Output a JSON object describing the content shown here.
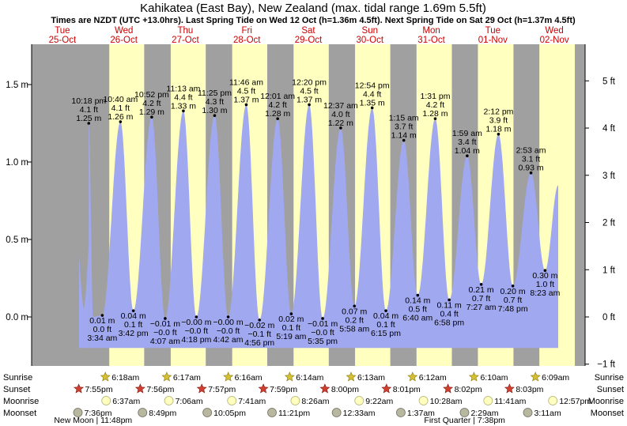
{
  "title": "Kahikatea (East Bay), New Zealand (max. tidal range 1.69m 5.5ft)",
  "subtitle": "Times are NZDT (UTC +13.0hrs). Last Spring Tide on Wed 12 Oct (h=1.36m 4.5ft). Next Spring Tide on Sat 29 Oct (h=1.37m 4.5ft)",
  "colors": {
    "day_text": "#cc0000",
    "water": "#a0a8f0",
    "night": "#a0a0a0",
    "day": "#ffffc0"
  },
  "chart_data": {
    "type": "area",
    "days": [
      {
        "dow": "Tue",
        "date": "25-Oct"
      },
      {
        "dow": "Wed",
        "date": "26-Oct"
      },
      {
        "dow": "Thu",
        "date": "27-Oct"
      },
      {
        "dow": "Fri",
        "date": "28-Oct"
      },
      {
        "dow": "Sat",
        "date": "29-Oct"
      },
      {
        "dow": "Sun",
        "date": "30-Oct"
      },
      {
        "dow": "Mon",
        "date": "31-Oct"
      },
      {
        "dow": "Tue",
        "date": "01-Nov"
      },
      {
        "dow": "Wed",
        "date": "02-Nov"
      }
    ],
    "y_left_ticks": [
      {
        "v": 1.5,
        "label": "1.5 m"
      },
      {
        "v": 1.0,
        "label": "1.0 m"
      },
      {
        "v": 0.5,
        "label": "0.5 m"
      },
      {
        "v": 0.0,
        "label": "0.0 m"
      }
    ],
    "y_right_ticks": [
      {
        "ft": 5,
        "label": "5 ft"
      },
      {
        "ft": 4,
        "label": "4 ft"
      },
      {
        "ft": 3,
        "label": "3 ft"
      },
      {
        "ft": 2,
        "label": "2 ft"
      },
      {
        "ft": 1,
        "label": "1 ft"
      },
      {
        "ft": 0,
        "label": "0 ft"
      },
      {
        "ft": -1,
        "label": "−1 ft"
      }
    ],
    "ylim_m": [
      -0.3,
      1.7
    ],
    "tides": [
      {
        "t": 24.0,
        "h": 0.0,
        "type": "low"
      },
      {
        "t": 22.3,
        "h": 1.25,
        "type": "high",
        "time": "10:18 pm",
        "ft": "4.1 ft",
        "m": "1.25 m"
      },
      {
        "t": 27.57,
        "h": 0.01,
        "type": "low",
        "time": "3:34 am",
        "ft": "0.0 ft",
        "m": "0.01 m"
      },
      {
        "t": 34.67,
        "h": 1.26,
        "type": "high",
        "time": "10:40 am",
        "ft": "4.1 ft",
        "m": "1.26 m"
      },
      {
        "t": 39.7,
        "h": 0.04,
        "type": "low",
        "time": "3:42 pm",
        "ft": "0.1 ft",
        "m": "0.04 m"
      },
      {
        "t": 46.87,
        "h": 1.29,
        "type": "high",
        "time": "10:52 pm",
        "ft": "4.2 ft",
        "m": "1.29 m"
      },
      {
        "t": 52.12,
        "h": -0.01,
        "type": "low",
        "time": "4:07 am",
        "ft": "−0.0 ft",
        "m": "−0.01 m"
      },
      {
        "t": 59.22,
        "h": 1.33,
        "type": "high",
        "time": "11:13 am",
        "ft": "4.4 ft",
        "m": "1.33 m"
      },
      {
        "t": 64.3,
        "h": -0.0,
        "type": "low",
        "time": "4:18 pm",
        "ft": "−0.0 ft",
        "m": "−0.00 m"
      },
      {
        "t": 71.42,
        "h": 1.3,
        "type": "high",
        "time": "11:25 pm",
        "ft": "4.3 ft",
        "m": "1.30 m"
      },
      {
        "t": 76.7,
        "h": -0.0,
        "type": "low",
        "time": "4:42 am",
        "ft": "−0.0 ft",
        "m": "−0.00 m"
      },
      {
        "t": 83.77,
        "h": 1.37,
        "type": "high",
        "time": "11:46 am",
        "ft": "4.5 ft",
        "m": "1.37 m"
      },
      {
        "t": 88.93,
        "h": -0.02,
        "type": "low",
        "time": "4:56 pm",
        "ft": "−0.1 ft",
        "m": "−0.02 m"
      },
      {
        "t": 96.02,
        "h": 1.28,
        "type": "high",
        "time": "12:01 am",
        "ft": "4.2 ft",
        "m": "1.28 m"
      },
      {
        "t": 101.32,
        "h": 0.02,
        "type": "low",
        "time": "5:19 am",
        "ft": "0.1 ft",
        "m": "0.02 m"
      },
      {
        "t": 108.33,
        "h": 1.37,
        "type": "high",
        "time": "12:20 pm",
        "ft": "4.5 ft",
        "m": "1.37 m"
      },
      {
        "t": 113.58,
        "h": -0.01,
        "type": "low",
        "time": "5:35 pm",
        "ft": "−0.0 ft",
        "m": "−0.01 m"
      },
      {
        "t": 120.62,
        "h": 1.22,
        "type": "high",
        "time": "12:37 am",
        "ft": "4.0 ft",
        "m": "1.22 m"
      },
      {
        "t": 125.97,
        "h": 0.07,
        "type": "low",
        "time": "5:58 am",
        "ft": "0.2 ft",
        "m": "0.07 m"
      },
      {
        "t": 132.9,
        "h": 1.35,
        "type": "high",
        "time": "12:54 pm",
        "ft": "4.4 ft",
        "m": "1.35 m"
      },
      {
        "t": 138.25,
        "h": 0.04,
        "type": "low",
        "time": "6:15 pm",
        "ft": "0.1 ft",
        "m": "0.04 m"
      },
      {
        "t": 145.25,
        "h": 1.14,
        "type": "high",
        "time": "1:15 am",
        "ft": "3.7 ft",
        "m": "1.14 m"
      },
      {
        "t": 150.67,
        "h": 0.14,
        "type": "low",
        "time": "6:40 am",
        "ft": "0.5 ft",
        "m": "0.14 m"
      },
      {
        "t": 157.52,
        "h": 1.28,
        "type": "high",
        "time": "1:31 pm",
        "ft": "4.2 ft",
        "m": "1.28 m"
      },
      {
        "t": 162.97,
        "h": 0.11,
        "type": "low",
        "time": "6:58 pm",
        "ft": "0.4 ft",
        "m": "0.11 m"
      },
      {
        "t": 169.98,
        "h": 1.04,
        "type": "high",
        "time": "1:59 am",
        "ft": "3.4 ft",
        "m": "1.04 m"
      },
      {
        "t": 175.45,
        "h": 0.21,
        "type": "low",
        "time": "7:27 am",
        "ft": "0.7 ft",
        "m": "0.21 m"
      },
      {
        "t": 182.2,
        "h": 1.18,
        "type": "high",
        "time": "2:12 pm",
        "ft": "3.9 ft",
        "m": "1.18 m"
      },
      {
        "t": 187.8,
        "h": 0.2,
        "type": "low",
        "time": "7:48 pm",
        "ft": "0.7 ft",
        "m": "0.20 m"
      },
      {
        "t": 194.88,
        "h": 0.93,
        "type": "high",
        "time": "2:53 am",
        "ft": "3.1 ft",
        "m": "0.93 m"
      },
      {
        "t": 200.38,
        "h": 0.3,
        "type": "low",
        "time": "8:23 am",
        "ft": "1.0 ft",
        "m": "0.30 m"
      },
      {
        "t": 205.5,
        "h": 0.85,
        "type": "none"
      }
    ],
    "night_spans": [
      [
        0,
        30.3
      ],
      [
        43.93,
        54.28
      ],
      [
        67.95,
        78.27
      ],
      [
        91.95,
        102.23
      ],
      [
        115.97,
        126.22
      ],
      [
        139.98,
        150.2
      ],
      [
        164.0,
        174.17
      ],
      [
        188.05,
        198.15
      ],
      [
        212.0,
        216
      ]
    ],
    "sun_rows": [
      {
        "label": "Sunrise",
        "times": [
          {
            "t": 30.3,
            "text": "6:18am"
          },
          {
            "t": 54.28,
            "text": "6:17am"
          },
          {
            "t": 78.27,
            "text": "6:16am"
          },
          {
            "t": 102.23,
            "text": "6:14am"
          },
          {
            "t": 126.22,
            "text": "6:13am"
          },
          {
            "t": 150.2,
            "text": "6:12am"
          },
          {
            "t": 174.17,
            "text": "6:10am"
          },
          {
            "t": 198.15,
            "text": "6:09am"
          }
        ]
      },
      {
        "label": "Sunset",
        "times": [
          {
            "t": 19.92,
            "text": "7:55pm"
          },
          {
            "t": 43.93,
            "text": "7:56pm"
          },
          {
            "t": 67.95,
            "text": "7:57pm"
          },
          {
            "t": 91.98,
            "text": "7:59pm"
          },
          {
            "t": 116.0,
            "text": "8:00pm"
          },
          {
            "t": 140.02,
            "text": "8:01pm"
          },
          {
            "t": 164.03,
            "text": "8:02pm"
          },
          {
            "t": 188.05,
            "text": "8:03pm"
          }
        ]
      }
    ],
    "moon_rows": [
      {
        "label": "Moonrise",
        "times": [
          {
            "t": 30.62,
            "text": "6:37am"
          },
          {
            "t": 55.1,
            "text": "7:06am"
          },
          {
            "t": 79.68,
            "text": "7:41am"
          },
          {
            "t": 104.43,
            "text": "8:26am"
          },
          {
            "t": 129.37,
            "text": "9:22am"
          },
          {
            "t": 154.47,
            "text": "10:28am"
          },
          {
            "t": 179.68,
            "text": "11:41am"
          },
          {
            "t": 204.95,
            "text": "12:57pm"
          }
        ]
      },
      {
        "label": "Moonset",
        "times": [
          {
            "t": 19.6,
            "text": "7:36pm"
          },
          {
            "t": 44.82,
            "text": "8:49pm"
          },
          {
            "t": 70.08,
            "text": "10:05pm"
          },
          {
            "t": 95.35,
            "text": "11:21pm"
          },
          {
            "t": 120.55,
            "text": "12:33am"
          },
          {
            "t": 145.62,
            "text": "1:37am"
          },
          {
            "t": 170.48,
            "text": "2:29am"
          },
          {
            "t": 195.18,
            "text": "3:11am"
          }
        ]
      }
    ],
    "phases": [
      {
        "t": 24.0,
        "text": "New Moon | 11:48pm"
      },
      {
        "t": 169.0,
        "text": "First Quarter | 7:38pm"
      }
    ]
  }
}
